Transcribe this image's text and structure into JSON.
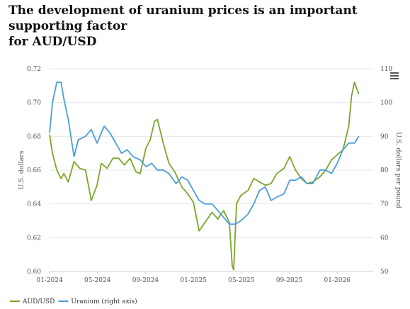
{
  "title_line1": "The development of uranium prices is an important supporting factor",
  "title_line2": "for AUD/USD",
  "menu_icon": "hamburger-menu-icon",
  "chart_data": {
    "type": "line",
    "title": "The development of uranium prices is an important supporting factor for AUD/USD",
    "x_ticks": [
      "01-2024",
      "05-2024",
      "09-2024",
      "01-2025",
      "05-2025",
      "09-2025",
      "01-2026"
    ],
    "x_range": [
      "2024-01",
      "2026-03"
    ],
    "y_left": {
      "label": "U.S. dollars",
      "range": [
        0.6,
        0.72
      ],
      "ticks": [
        "0.72",
        "0.70",
        "0.68",
        "0.66",
        "0.64",
        "0.62",
        "0.60"
      ]
    },
    "y_right": {
      "label": "U.S. dollars per pound",
      "range": [
        50,
        110
      ],
      "ticks": [
        "110",
        "100",
        "90",
        "80",
        "70",
        "60",
        "50"
      ]
    },
    "grid": true,
    "legend_position": "bottom-left",
    "series": [
      {
        "name": "AUD/USD",
        "axis": "left",
        "color": "#7aa62b",
        "x": [
          2024.0,
          2024.02,
          2024.05,
          2024.08,
          2024.1,
          2024.13,
          2024.17,
          2024.21,
          2024.25,
          2024.29,
          2024.33,
          2024.36,
          2024.4,
          2024.44,
          2024.48,
          2024.52,
          2024.56,
          2024.6,
          2024.63,
          2024.67,
          2024.7,
          2024.73,
          2024.75,
          2024.79,
          2024.83,
          2024.87,
          2024.92,
          2024.96,
          2025.0,
          2025.04,
          2025.08,
          2025.13,
          2025.17,
          2025.21,
          2025.25,
          2025.27,
          2025.28,
          2025.3,
          2025.33,
          2025.38,
          2025.42,
          2025.46,
          2025.5,
          2025.54,
          2025.58,
          2025.63,
          2025.67,
          2025.71,
          2025.75,
          2025.79,
          2025.83,
          2025.88,
          2025.92,
          2025.96,
          2026.0,
          2026.04,
          2026.08,
          2026.1,
          2026.12,
          2026.15
        ],
        "values": [
          0.681,
          0.67,
          0.66,
          0.655,
          0.658,
          0.653,
          0.665,
          0.661,
          0.66,
          0.642,
          0.651,
          0.664,
          0.661,
          0.667,
          0.667,
          0.663,
          0.667,
          0.659,
          0.658,
          0.673,
          0.678,
          0.689,
          0.69,
          0.676,
          0.664,
          0.659,
          0.65,
          0.646,
          0.641,
          0.624,
          0.629,
          0.635,
          0.631,
          0.636,
          0.629,
          0.603,
          0.601,
          0.64,
          0.645,
          0.648,
          0.655,
          0.653,
          0.651,
          0.652,
          0.658,
          0.661,
          0.668,
          0.66,
          0.655,
          0.652,
          0.653,
          0.656,
          0.66,
          0.666,
          0.669,
          0.672,
          0.686,
          0.704,
          0.712,
          0.705
        ]
      },
      {
        "name": "Uranium (right axis)",
        "axis": "right",
        "color": "#4a9fd8",
        "x": [
          2024.0,
          2024.02,
          2024.05,
          2024.08,
          2024.1,
          2024.13,
          2024.17,
          2024.2,
          2024.25,
          2024.29,
          2024.33,
          2024.38,
          2024.42,
          2024.46,
          2024.5,
          2024.54,
          2024.58,
          2024.63,
          2024.67,
          2024.71,
          2024.75,
          2024.79,
          2024.83,
          2024.88,
          2024.92,
          2024.96,
          2025.0,
          2025.04,
          2025.08,
          2025.13,
          2025.17,
          2025.21,
          2025.25,
          2025.29,
          2025.33,
          2025.38,
          2025.42,
          2025.46,
          2025.5,
          2025.54,
          2025.58,
          2025.63,
          2025.67,
          2025.71,
          2025.75,
          2025.79,
          2025.83,
          2025.88,
          2025.92,
          2025.96,
          2026.0,
          2026.04,
          2026.08,
          2026.12,
          2026.15
        ],
        "values": [
          91,
          100,
          106,
          106,
          101,
          95,
          84,
          89,
          90,
          92,
          88,
          93,
          91,
          88,
          85,
          86,
          84,
          83,
          81,
          82,
          80,
          80,
          79,
          76,
          78,
          77,
          74,
          71,
          70,
          70,
          68,
          66,
          64,
          64,
          65,
          67,
          70,
          74,
          75,
          71,
          72,
          73,
          77,
          77,
          78,
          76,
          76,
          80,
          80,
          79,
          82,
          86,
          88,
          88,
          90
        ]
      }
    ]
  }
}
